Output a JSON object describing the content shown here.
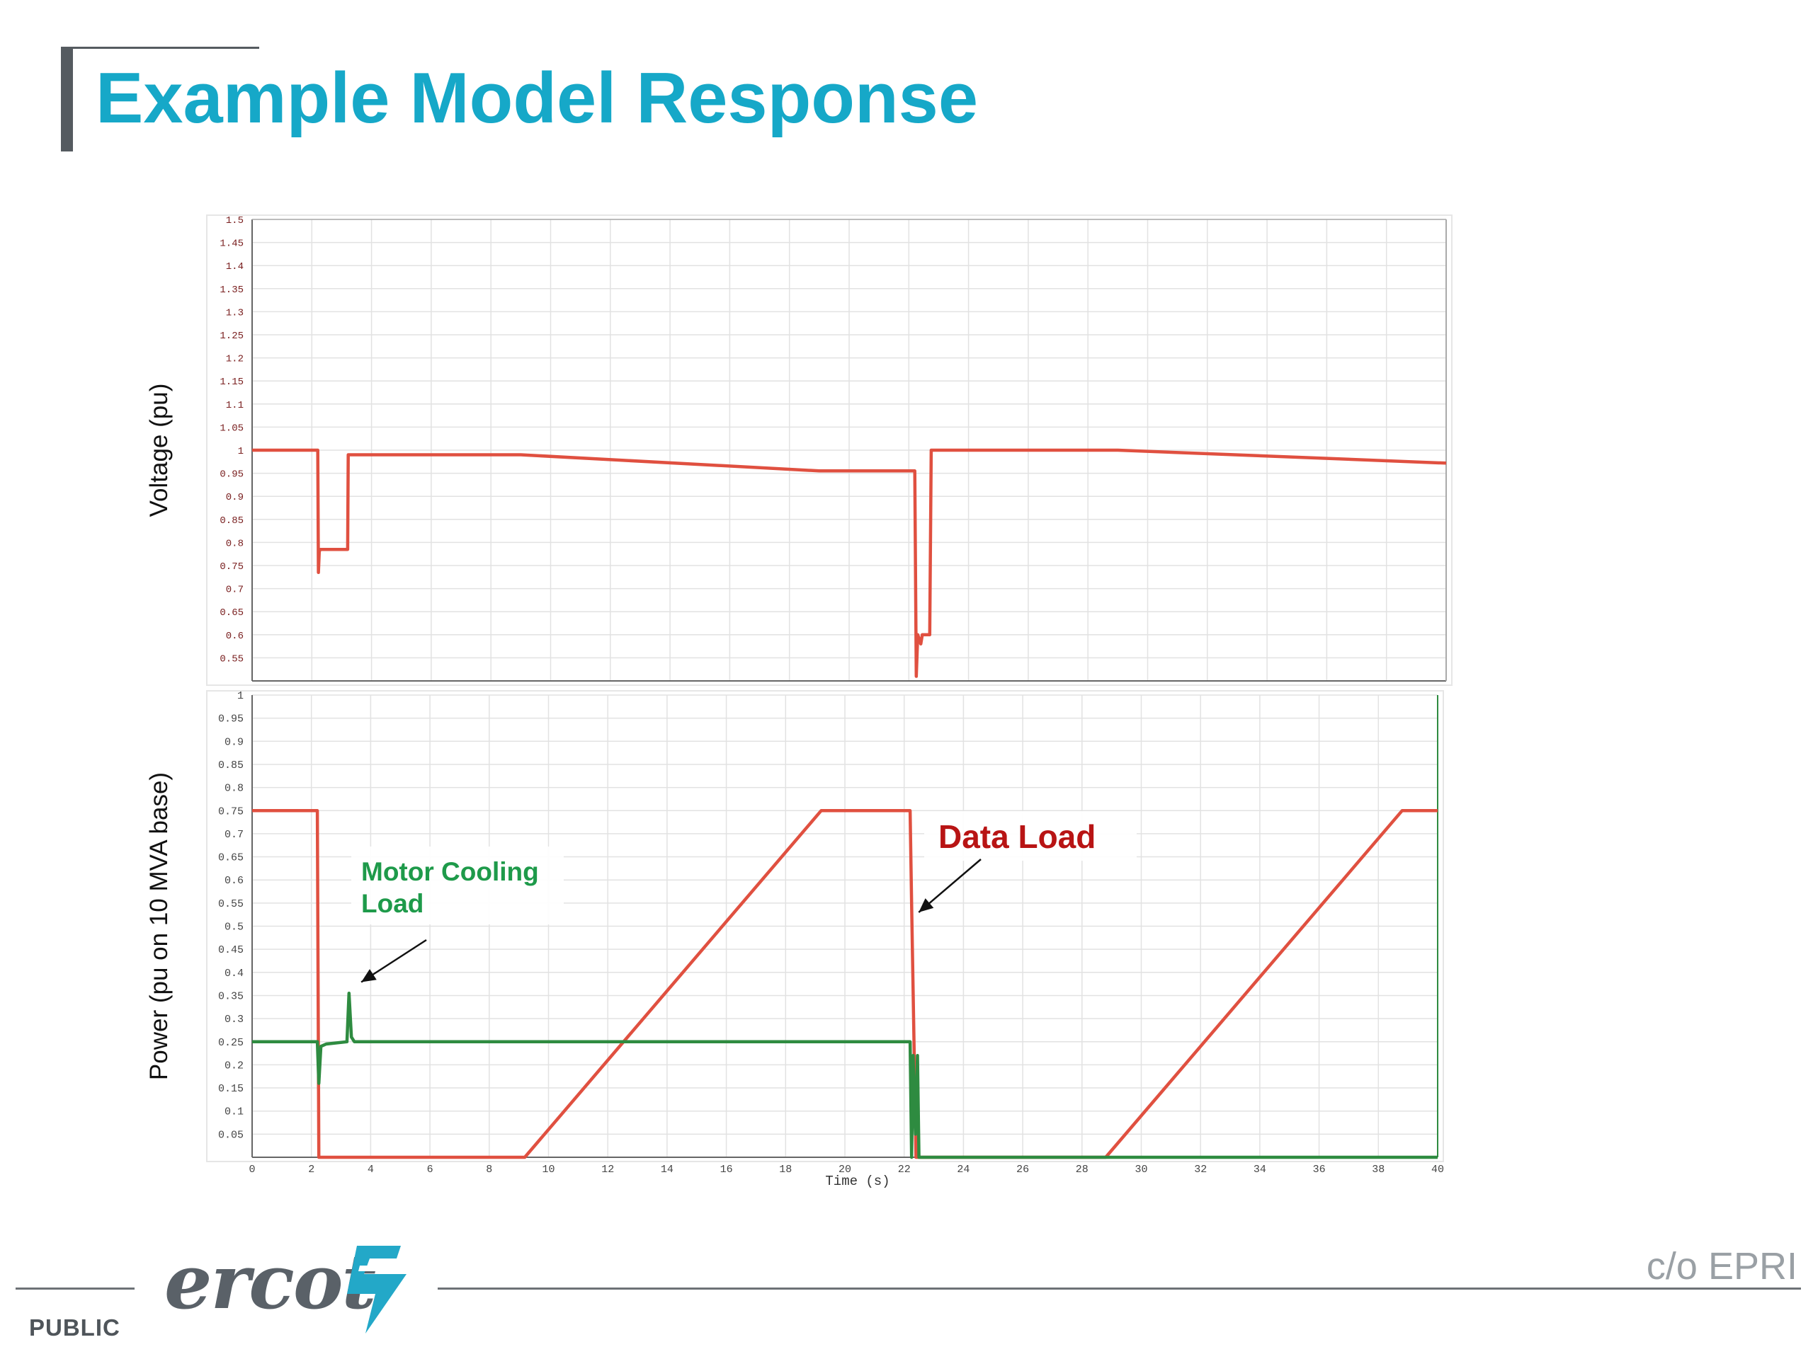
{
  "slide": {
    "title": "Example Model Response",
    "footer_classification": "PUBLIC",
    "logo_text": "ercot",
    "credit": "c/o EPRI",
    "colors": {
      "title": "#16a8c8",
      "accent_bar": "#555b60",
      "logo": "#5a6168"
    }
  },
  "chart_data": [
    {
      "type": "line",
      "ylabel": "Voltage (pu)",
      "xlabel": "",
      "xlim": [
        0,
        40
      ],
      "ylim": [
        0.5,
        1.5
      ],
      "y_ticks": [
        0.55,
        0.6,
        0.65,
        0.7,
        0.75,
        0.8,
        0.85,
        0.9,
        0.95,
        1,
        1.05,
        1.1,
        1.15,
        1.2,
        1.25,
        1.3,
        1.35,
        1.4,
        1.45,
        1.5
      ],
      "grid": true,
      "series": [
        {
          "color": "#e05040",
          "x": [
            0,
            2.2,
            2.22,
            2.25,
            2.28,
            3.2,
            3.22,
            9.0,
            19.0,
            22.2,
            22.25,
            22.3,
            22.4,
            22.45,
            22.5,
            22.55,
            22.7,
            22.75,
            29.0,
            40.0
          ],
          "y": [
            1.0,
            1.0,
            0.735,
            0.78,
            0.785,
            0.785,
            0.99,
            0.99,
            0.955,
            0.955,
            0.51,
            0.6,
            0.58,
            0.6,
            0.6,
            0.6,
            0.6,
            1.0,
            1.0,
            0.972
          ]
        }
      ]
    },
    {
      "type": "line",
      "ylabel": "Power (pu on 10 MVA base)",
      "xlabel": "Time (s)",
      "xlim": [
        0,
        40
      ],
      "ylim": [
        0,
        1
      ],
      "x_ticks": [
        0,
        2,
        4,
        6,
        8,
        10,
        12,
        14,
        16,
        18,
        20,
        22,
        24,
        26,
        28,
        30,
        32,
        34,
        36,
        38,
        40
      ],
      "y_ticks": [
        0.05,
        0.1,
        0.15,
        0.2,
        0.25,
        0.3,
        0.35,
        0.4,
        0.45,
        0.5,
        0.55,
        0.6,
        0.65,
        0.7,
        0.75,
        0.8,
        0.85,
        0.9,
        0.95,
        1
      ],
      "grid": true,
      "series": [
        {
          "color": "#e05040",
          "x": [
            0,
            2.2,
            2.25,
            9.2,
            19.2,
            22.2,
            22.25,
            22.4,
            28.8,
            38.8,
            40
          ],
          "y": [
            0.75,
            0.75,
            0.0,
            0.0,
            0.75,
            0.75,
            0.55,
            0.0,
            0.0,
            0.75,
            0.75
          ]
        },
        {
          "color": "#2e8b40",
          "x": [
            0,
            2.2,
            2.25,
            2.32,
            2.5,
            3.2,
            3.27,
            3.35,
            3.45,
            12.0,
            22.2,
            22.25,
            22.3,
            22.38,
            22.45,
            22.5,
            22.55,
            40
          ],
          "y": [
            0.25,
            0.25,
            0.16,
            0.24,
            0.245,
            0.25,
            0.355,
            0.26,
            0.25,
            0.25,
            0.25,
            0.0,
            0.22,
            0.05,
            0.22,
            0.0,
            0.0,
            0.0
          ]
        }
      ],
      "annotations": [
        {
          "text_lines": [
            "Motor Cooling",
            "Load"
          ],
          "color": "#1e9a4a",
          "points_to": {
            "x": 3.3,
            "y": 0.33
          }
        },
        {
          "text_lines": [
            "Data Load"
          ],
          "color": "#b81414",
          "points_to": {
            "x": 22.3,
            "y": 0.53
          }
        }
      ]
    }
  ]
}
